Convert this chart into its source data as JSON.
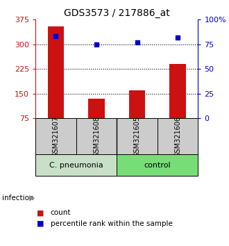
{
  "title": "GDS3573 / 217886_at",
  "samples": [
    "GSM321607",
    "GSM321608",
    "GSM321605",
    "GSM321606"
  ],
  "counts": [
    355,
    135,
    160,
    240
  ],
  "percentiles": [
    83,
    75,
    77,
    82
  ],
  "ylim_left": [
    75,
    375
  ],
  "ylim_right": [
    0,
    100
  ],
  "yticks_left": [
    75,
    150,
    225,
    300,
    375
  ],
  "yticks_right": [
    0,
    25,
    50,
    75,
    100
  ],
  "ytick_labels_right": [
    "0",
    "25",
    "50",
    "75",
    "100%"
  ],
  "bar_color": "#cc1111",
  "marker_color": "#0000cc",
  "group1_label": "C. pneumonia",
  "group2_label": "control",
  "group1_color": "#c8e0c8",
  "group2_color": "#77dd77",
  "group_row_label": "infection",
  "legend_count": "count",
  "legend_percentile": "percentile rank within the sample",
  "sample_box_color": "#cccccc",
  "title_fontsize": 10,
  "tick_fontsize": 8
}
